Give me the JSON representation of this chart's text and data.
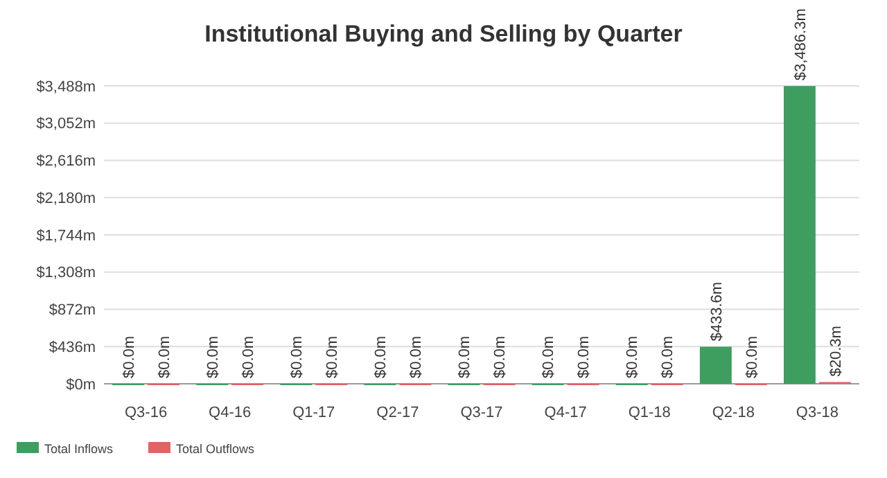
{
  "chart_data": {
    "type": "bar",
    "title": "Institutional Buying and Selling by Quarter",
    "categories": [
      "Q3-16",
      "Q4-16",
      "Q1-17",
      "Q2-17",
      "Q3-17",
      "Q4-17",
      "Q1-18",
      "Q2-18",
      "Q3-18"
    ],
    "series": [
      {
        "name": "Total Inflows",
        "color": "#3d9e60",
        "values": [
          0,
          0,
          0,
          0,
          0,
          0,
          0,
          433.6,
          3486.3
        ],
        "value_labels": [
          "$0.0m",
          "$0.0m",
          "$0.0m",
          "$0.0m",
          "$0.0m",
          "$0.0m",
          "$0.0m",
          "$433.6m",
          "$3,486.3m"
        ]
      },
      {
        "name": "Total Outflows",
        "color": "#e06464",
        "values": [
          0,
          0,
          0,
          0,
          0,
          0,
          0,
          0,
          20.3
        ],
        "value_labels": [
          "$0.0m",
          "$0.0m",
          "$0.0m",
          "$0.0m",
          "$0.0m",
          "$0.0m",
          "$0.0m",
          "$0.0m",
          "$20.3m"
        ]
      }
    ],
    "ylim": [
      0,
      3488
    ],
    "yticks": [
      {
        "value": 0,
        "label": "$0m"
      },
      {
        "value": 436,
        "label": "$436m"
      },
      {
        "value": 872,
        "label": "$872m"
      },
      {
        "value": 1308,
        "label": "$1,308m"
      },
      {
        "value": 1744,
        "label": "$1,744m"
      },
      {
        "value": 2180,
        "label": "$2,180m"
      },
      {
        "value": 2616,
        "label": "$2,616m"
      },
      {
        "value": 3052,
        "label": "$3,052m"
      },
      {
        "value": 3488,
        "label": "$3,488m"
      }
    ],
    "grid": "y",
    "legend": "bottom left"
  }
}
